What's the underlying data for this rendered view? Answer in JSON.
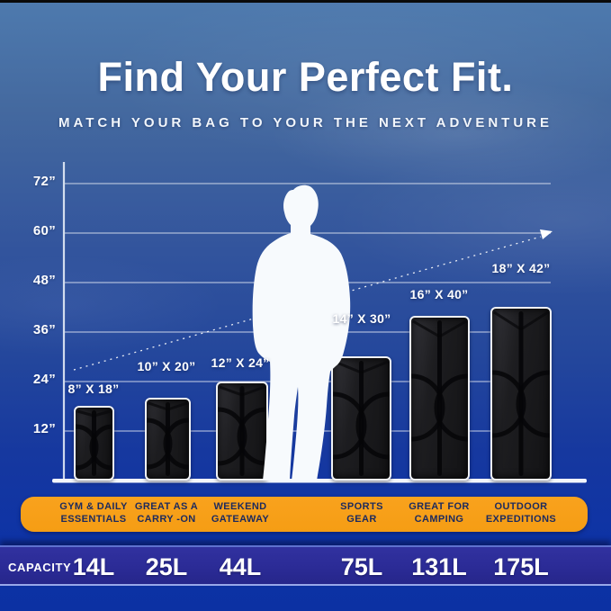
{
  "header": {
    "title": "Find Your Perfect Fit.",
    "subtitle": "MATCH YOUR BAG TO YOUR THE NEXT ADVENTURE"
  },
  "theme": {
    "accent_orange": "#F9A21D",
    "banner_text_navy": "#1C2A5E",
    "capacity_band_indigo": "#2B2B96",
    "background_blue_top": "#4E7AAE",
    "background_blue_bottom": "#0C31A3"
  },
  "chart_data": {
    "type": "bar",
    "title": "Find Your Perfect Fit.",
    "subtitle": "MATCH YOUR BAG TO YOUR THE NEXT ADVENTURE",
    "ylabel": "",
    "xlabel": "",
    "yticks": [
      "72”",
      "60”",
      "48”",
      "36”",
      "24”",
      "12”"
    ],
    "ytick_values": [
      72,
      60,
      48,
      36,
      24,
      12
    ],
    "ylim": [
      0,
      78
    ],
    "grid": true,
    "reference_figure": "human silhouette standing on baseline",
    "trend_arrow": "dashed ascending arrow from smallest to largest bag",
    "bags": [
      {
        "size_label": "8” X 18”",
        "width_in": 8,
        "height_in": 18,
        "category_line1": "GYM & DAILY",
        "category_line2": "ESSENTIALS",
        "capacity": "14L"
      },
      {
        "size_label": "10” X 20”",
        "width_in": 10,
        "height_in": 20,
        "category_line1": "GREAT AS A",
        "category_line2": "CARRY -ON",
        "capacity": "25L"
      },
      {
        "size_label": "12” X 24”",
        "width_in": 12,
        "height_in": 24,
        "category_line1": "WEEKEND",
        "category_line2": "GATEAWAY",
        "capacity": "44L"
      },
      {
        "size_label": "14” X 30”",
        "width_in": 14,
        "height_in": 30,
        "category_line1": "SPORTS",
        "category_line2": "GEAR",
        "capacity": "75L"
      },
      {
        "size_label": "16” X 40”",
        "width_in": 16,
        "height_in": 40,
        "category_line1": "GREAT FOR",
        "category_line2": "CAMPING",
        "capacity": "131L"
      },
      {
        "size_label": "18” X 42”",
        "width_in": 18,
        "height_in": 42,
        "category_line1": "OUTDOOR",
        "category_line2": "EXPEDITIONS",
        "capacity": "175L"
      }
    ]
  },
  "capacity_row": {
    "label": "CAPACITY"
  }
}
